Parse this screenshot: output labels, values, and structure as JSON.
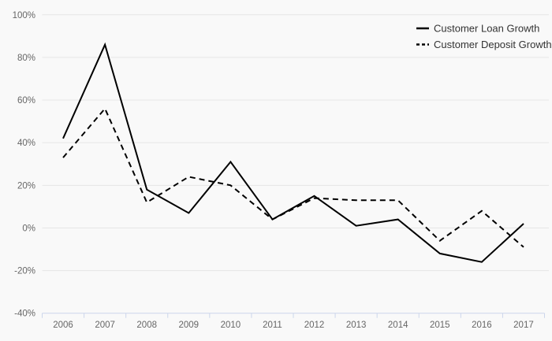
{
  "chart_data": {
    "type": "line",
    "title": "",
    "categories": [
      "2006",
      "2007",
      "2008",
      "2009",
      "2010",
      "2011",
      "2012",
      "2013",
      "2014",
      "2015",
      "2016",
      "2017"
    ],
    "series": [
      {
        "name": "Customer Loan Growth",
        "dash": "solid",
        "values": [
          42,
          86,
          18,
          7,
          31,
          4,
          15,
          1,
          4,
          -12,
          -16,
          2
        ]
      },
      {
        "name": "Customer Deposit Growth",
        "dash": "dashed",
        "values": [
          33,
          56,
          12,
          24,
          20,
          4,
          14,
          13,
          13,
          -6,
          8,
          -9
        ]
      }
    ],
    "ylim": [
      -40,
      100
    ],
    "yticks": [
      100,
      80,
      60,
      40,
      20,
      0,
      -20,
      -40
    ],
    "ytick_suffix": "%",
    "grid": true,
    "legend_position": "top-right",
    "colors": {
      "background": "#f9f9f9",
      "gridline": "#e6e6e6",
      "axis_line": "#ccd6eb",
      "tick": "#ccd6eb",
      "series_line": "#000000",
      "axis_label": "#666666",
      "legend_text": "#333333"
    }
  }
}
